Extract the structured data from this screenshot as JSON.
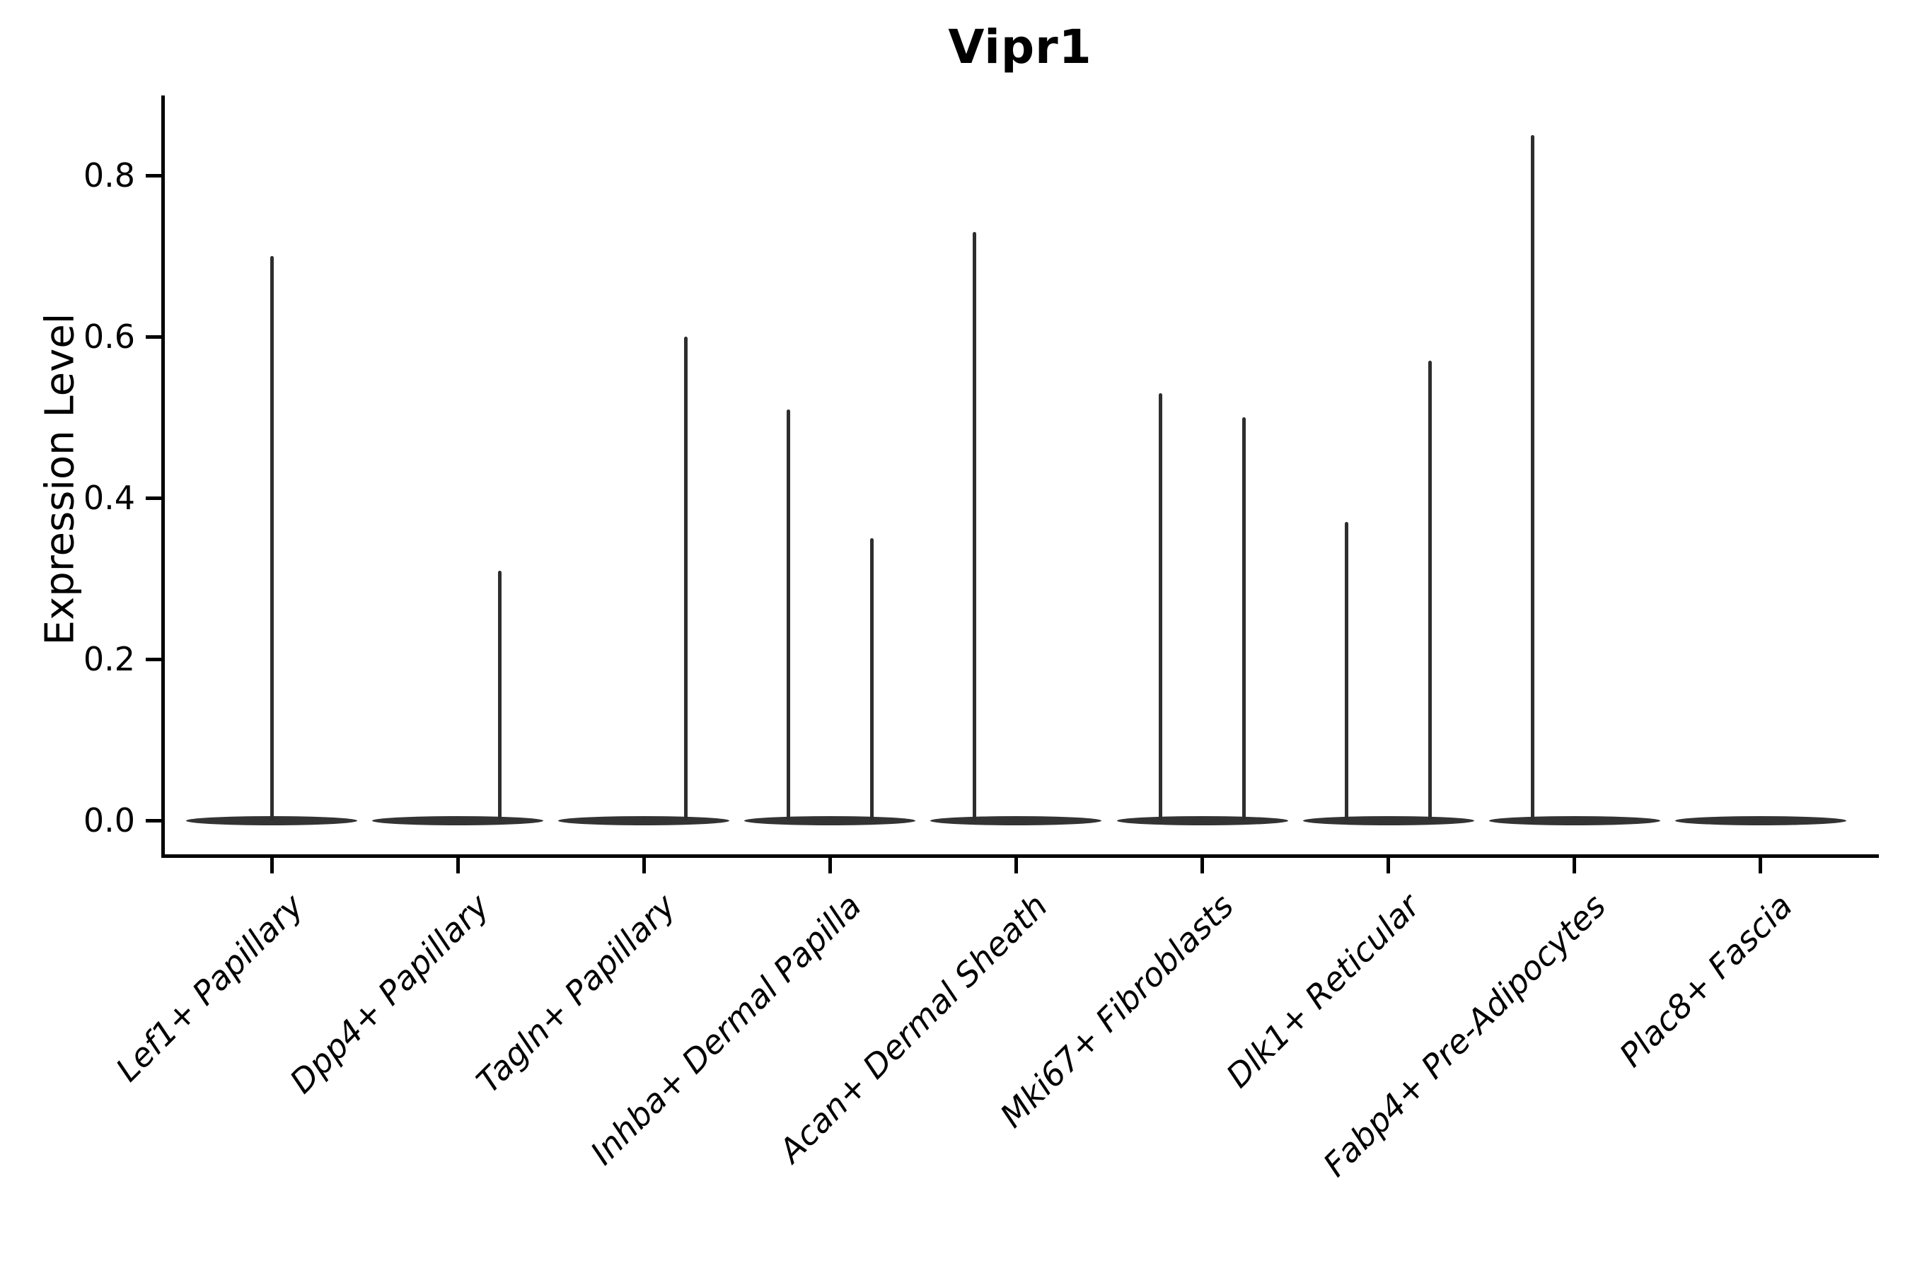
{
  "title": "Vipr1",
  "axes": {
    "ylabel": "Expression Level"
  },
  "chart_data": {
    "type": "violin",
    "title": "Vipr1",
    "xlabel": "",
    "ylabel": "Expression Level",
    "yticks": [
      0.0,
      0.2,
      0.4,
      0.6,
      0.8
    ],
    "ylim": [
      -0.042,
      0.9
    ],
    "grid": false,
    "legend": "none",
    "violin_color": "#333333",
    "description": "Violin plot of Vipr1 expression per fibroblast cluster; each violin is flat at 0 (most cells not expressing) with thin density tails reaching the maximum expression values listed.",
    "categories": [
      "Lef1+ Papillary",
      "Dpp4+ Papillary",
      "Tagln+ Papillary",
      "Inhba+ Dermal Papilla",
      "Acan+ Dermal Sheath",
      "Mki67+ Fibroblasts",
      "Dlk1+ Reticular",
      "Fabp4+ Pre-Adipocytes",
      "Plac8+ Fascia"
    ],
    "series": [
      {
        "category": "Lef1+ Papillary",
        "zero_peak": true,
        "tails": [
          {
            "dx": 0.0,
            "max": 0.7
          }
        ]
      },
      {
        "category": "Dpp4+ Papillary",
        "zero_peak": true,
        "tails": [
          {
            "dx": 0.225,
            "max": 0.31
          }
        ]
      },
      {
        "category": "Tagln+ Papillary",
        "zero_peak": true,
        "tails": [
          {
            "dx": 0.225,
            "max": 0.6
          }
        ]
      },
      {
        "category": "Inhba+ Dermal Papilla",
        "zero_peak": true,
        "tails": [
          {
            "dx": -0.225,
            "max": 0.51
          },
          {
            "dx": 0.225,
            "max": 0.35
          }
        ]
      },
      {
        "category": "Acan+ Dermal Sheath",
        "zero_peak": true,
        "tails": [
          {
            "dx": -0.225,
            "max": 0.73
          }
        ]
      },
      {
        "category": "Mki67+ Fibroblasts",
        "zero_peak": true,
        "tails": [
          {
            "dx": -0.225,
            "max": 0.53
          },
          {
            "dx": 0.225,
            "max": 0.5
          }
        ]
      },
      {
        "category": "Dlk1+ Reticular",
        "zero_peak": true,
        "tails": [
          {
            "dx": -0.225,
            "max": 0.37
          },
          {
            "dx": 0.225,
            "max": 0.57
          }
        ]
      },
      {
        "category": "Fabp4+ Pre-Adipocytes",
        "zero_peak": true,
        "tails": [
          {
            "dx": -0.225,
            "max": 0.85
          }
        ]
      },
      {
        "category": "Plac8+ Fascia",
        "zero_peak": true,
        "tails": []
      }
    ]
  }
}
